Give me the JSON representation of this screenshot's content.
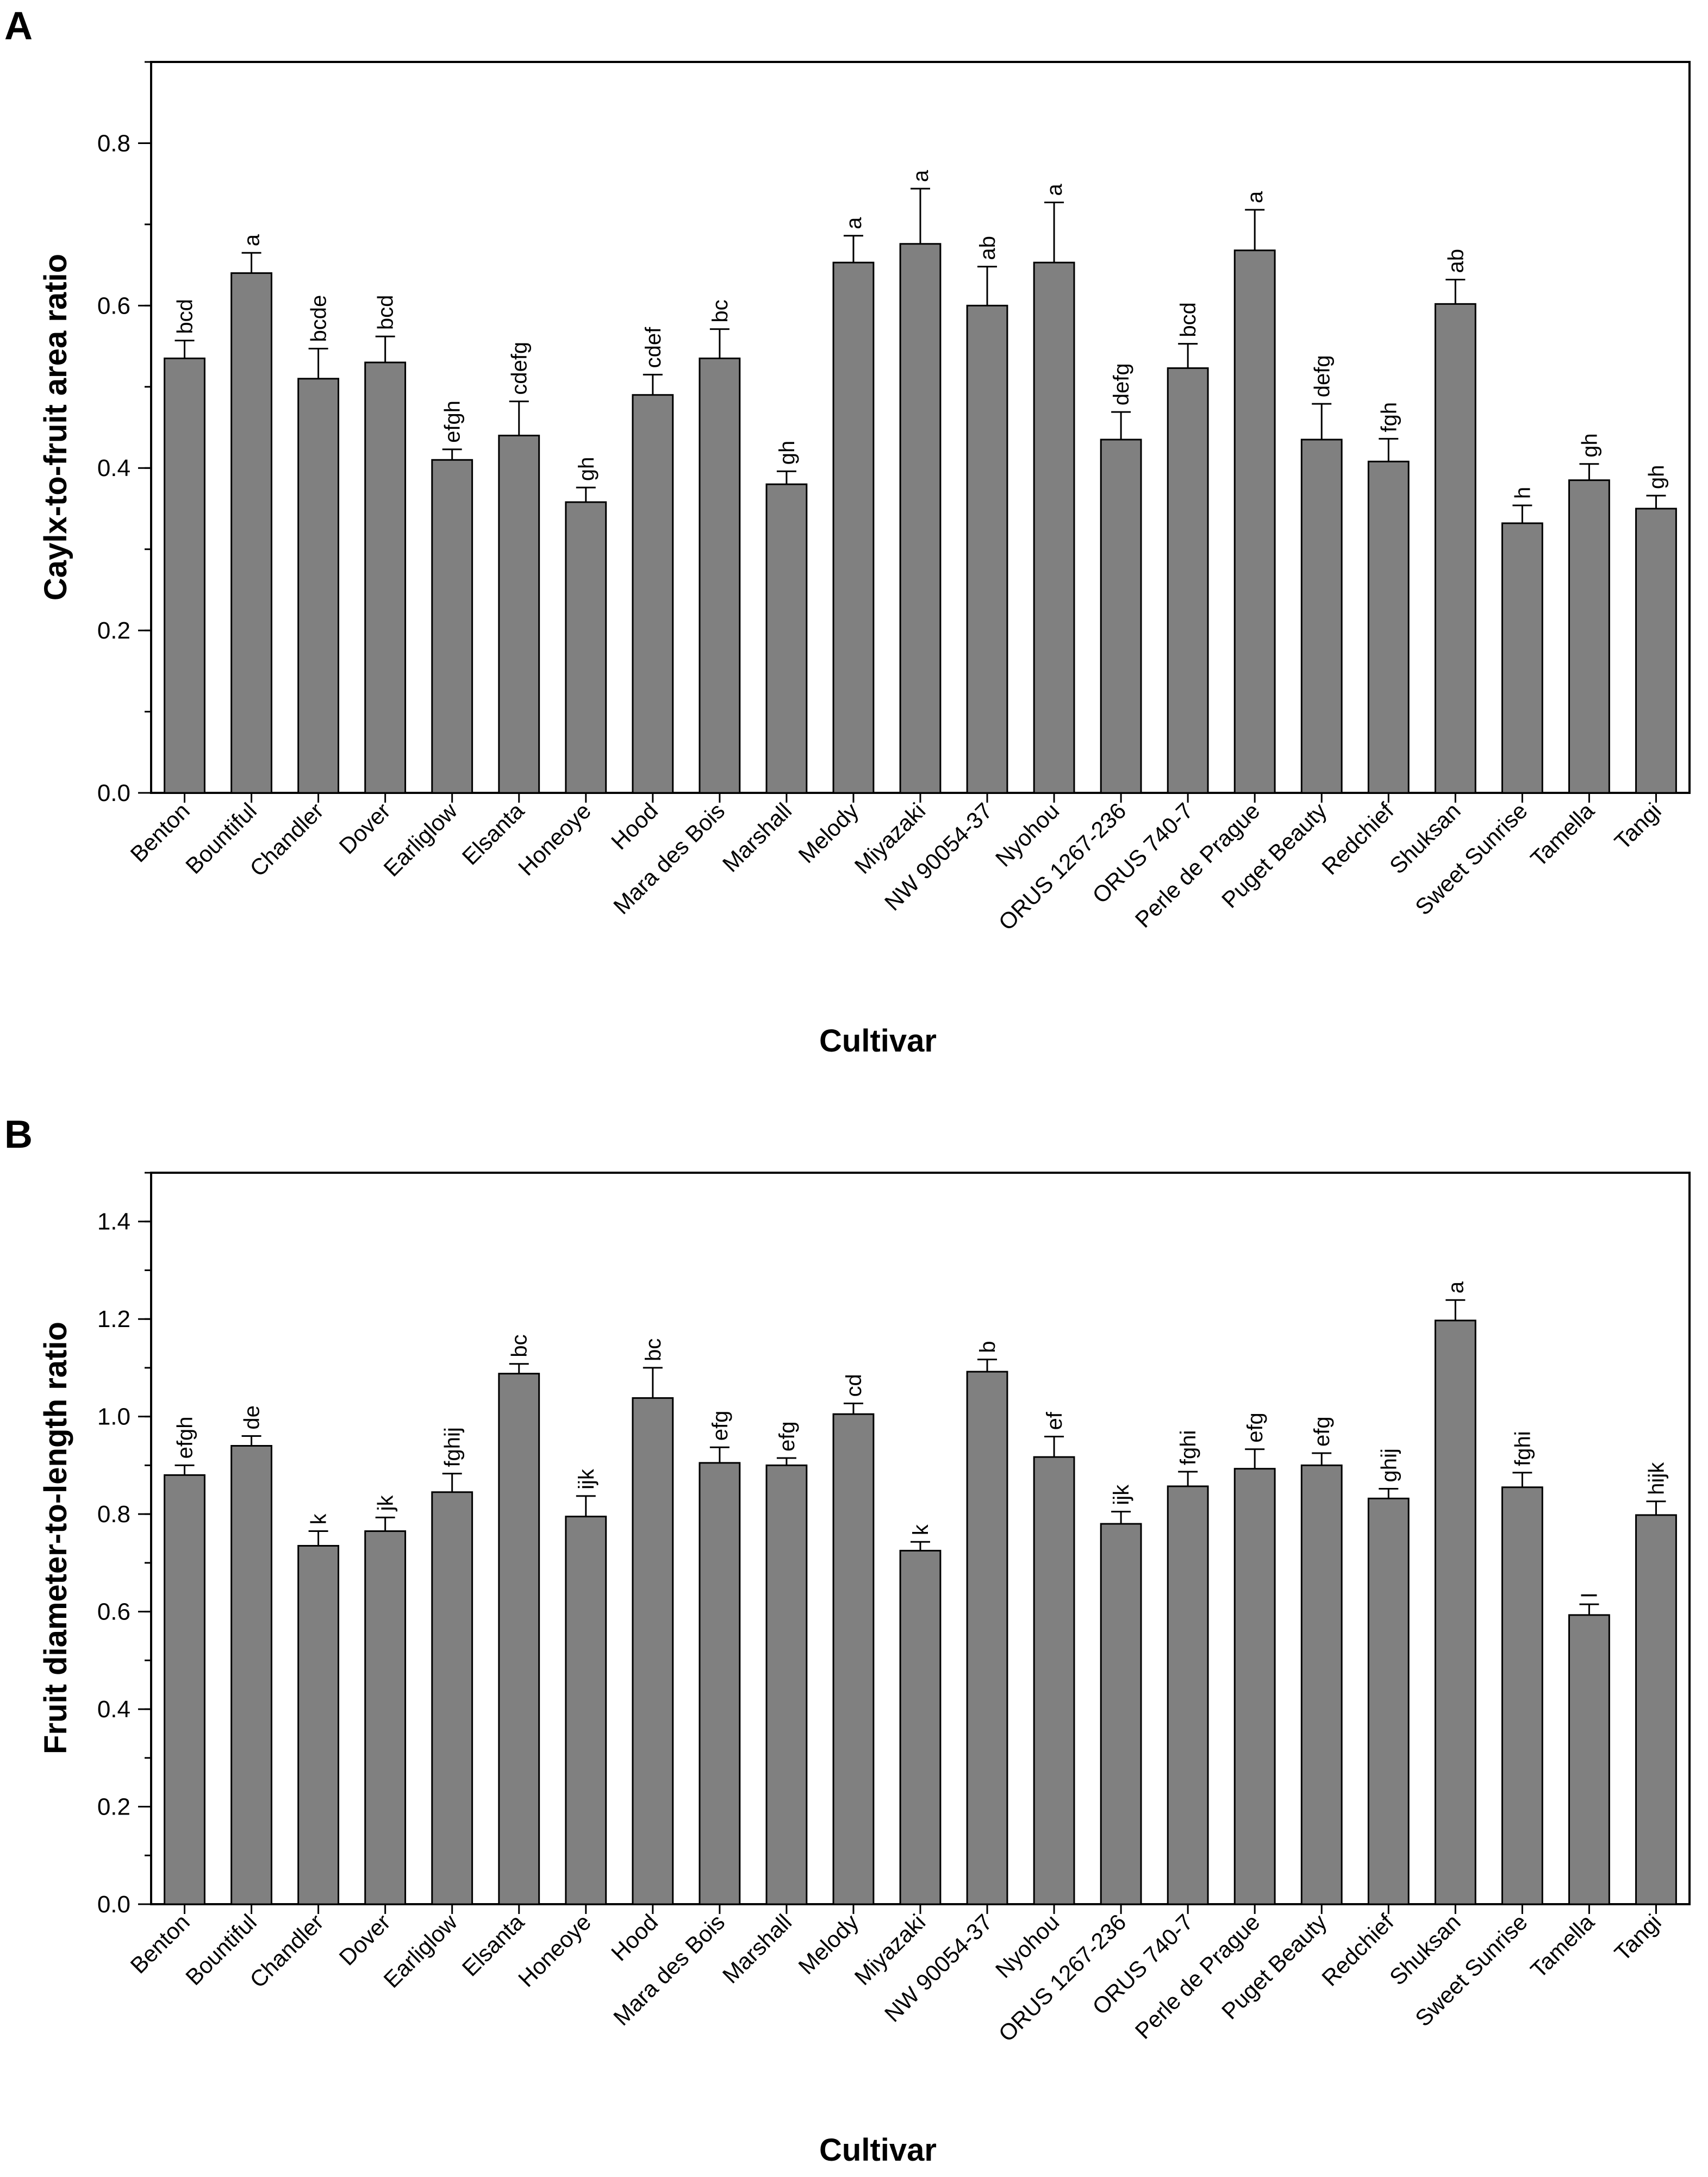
{
  "figure": {
    "panel_labels": [
      "A",
      "B"
    ],
    "bar_color": "#808080",
    "axis_color": "#000000"
  },
  "chart_data": [
    {
      "type": "bar",
      "panel": "A",
      "title": "",
      "xlabel": "Cultivar",
      "ylabel": "Caylx-to-fruit area ratio",
      "ylim": [
        0,
        0.9
      ],
      "yticks": [
        0.0,
        0.2,
        0.4,
        0.6,
        0.8
      ],
      "ytick_labels": [
        "0.0",
        "0.2",
        "0.4",
        "0.6",
        "0.8"
      ],
      "minor_tick_step": 0.1,
      "categories": [
        "Benton",
        "Bountiful",
        "Chandler",
        "Dover",
        "Earliglow",
        "Elsanta",
        "Honeoye",
        "Hood",
        "Mara des Bois",
        "Marshall",
        "Melody",
        "Miyazaki",
        "NW 90054-37",
        "Nyohou",
        "ORUS 1267-236",
        "ORUS 740-7",
        "Perle de Prague",
        "Puget Beauty",
        "Redchief",
        "Shuksan",
        "Sweet Sunrise",
        "Tamella",
        "Tangi"
      ],
      "values": [
        0.535,
        0.64,
        0.51,
        0.53,
        0.41,
        0.44,
        0.358,
        0.49,
        0.535,
        0.38,
        0.653,
        0.676,
        0.6,
        0.653,
        0.435,
        0.523,
        0.668,
        0.435,
        0.408,
        0.602,
        0.332,
        0.385,
        0.35
      ],
      "errors": [
        0.022,
        0.025,
        0.037,
        0.032,
        0.013,
        0.042,
        0.018,
        0.025,
        0.036,
        0.016,
        0.033,
        0.068,
        0.048,
        0.074,
        0.034,
        0.03,
        0.05,
        0.044,
        0.028,
        0.03,
        0.022,
        0.02,
        0.016
      ],
      "significance": [
        "bcd",
        "a",
        "bcde",
        "bcd",
        "efgh",
        "cdefg",
        "gh",
        "cdef",
        "bc",
        "gh",
        "a",
        "a",
        "ab",
        "a",
        "defg",
        "bcd",
        "a",
        "defg",
        "fgh",
        "ab",
        "h",
        "gh",
        "gh"
      ]
    },
    {
      "type": "bar",
      "panel": "B",
      "title": "",
      "xlabel": "Cultivar",
      "ylabel": "Fruit diameter-to-length ratio",
      "ylim": [
        0,
        1.5
      ],
      "yticks": [
        0.0,
        0.2,
        0.4,
        0.6,
        0.8,
        1.0,
        1.2,
        1.4
      ],
      "ytick_labels": [
        "0.0",
        "0.2",
        "0.4",
        "0.6",
        "0.8",
        "1.0",
        "1.2",
        "1.4"
      ],
      "minor_tick_step": 0.1,
      "categories": [
        "Benton",
        "Bountiful",
        "Chandler",
        "Dover",
        "Earliglow",
        "Elsanta",
        "Honeoye",
        "Hood",
        "Mara des Bois",
        "Marshall",
        "Melody",
        "Miyazaki",
        "NW 90054-37",
        "Nyohou",
        "ORUS 1267-236",
        "ORUS 740-7",
        "Perle de Prague",
        "Puget Beauty",
        "Redchief",
        "Shuksan",
        "Sweet Sunrise",
        "Tamella",
        "Tangi"
      ],
      "values": [
        0.88,
        0.94,
        0.735,
        0.765,
        0.845,
        1.088,
        0.795,
        1.038,
        0.905,
        0.9,
        1.005,
        0.725,
        1.092,
        0.917,
        0.78,
        0.857,
        0.893,
        0.9,
        0.832,
        1.197,
        0.855,
        0.593,
        0.798
      ],
      "errors": [
        0.02,
        0.02,
        0.03,
        0.028,
        0.038,
        0.02,
        0.042,
        0.062,
        0.032,
        0.015,
        0.022,
        0.018,
        0.025,
        0.042,
        0.025,
        0.03,
        0.04,
        0.025,
        0.02,
        0.042,
        0.03,
        0.022,
        0.028
      ],
      "significance": [
        "efgh",
        "de",
        "k",
        "jk",
        "fghij",
        "bc",
        "ijk",
        "bc",
        "efg",
        "efg",
        "cd",
        "k",
        "b",
        "ef",
        "ijk",
        "fghi",
        "efg",
        "efg",
        "ghij",
        "a",
        "fghi",
        "l",
        "hijk"
      ]
    }
  ]
}
